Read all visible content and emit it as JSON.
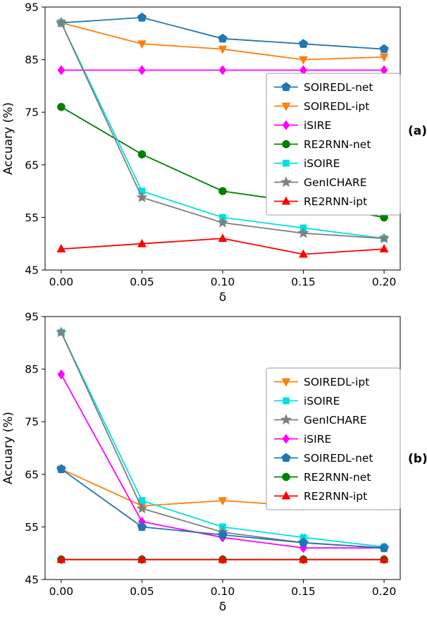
{
  "chart_data": [
    {
      "type": "line",
      "panel_label": "(a)",
      "xlabel": "δ",
      "ylabel": "Accuary (%)",
      "x": [
        0.0,
        0.05,
        0.1,
        0.15,
        0.2
      ],
      "xticklabels": [
        "0.00",
        "0.05",
        "0.10",
        "0.15",
        "0.20"
      ],
      "yticks": [
        45,
        55,
        65,
        75,
        85,
        95
      ],
      "ylim": [
        45,
        95
      ],
      "xlim": [
        -0.01,
        0.21
      ],
      "grid": false,
      "legend_position": "center right",
      "series": [
        {
          "name": "SOIREDL-net",
          "color": "#1f77b4",
          "marker": "pentagon",
          "values": [
            92,
            93,
            89,
            88,
            87
          ]
        },
        {
          "name": "SOIREDL-ipt",
          "color": "#ff7f0e",
          "marker": "triangle-down",
          "values": [
            92,
            88,
            87,
            85,
            85.5
          ]
        },
        {
          "name": "iSIRE",
          "color": "#ff00ff",
          "marker": "diamond",
          "values": [
            83,
            83,
            83,
            83,
            83
          ]
        },
        {
          "name": "RE2RNN-net",
          "color": "#008000",
          "marker": "circle",
          "values": [
            76,
            67,
            60,
            57.8,
            55
          ]
        },
        {
          "name": "iSOIRE",
          "color": "#00e0e0",
          "marker": "square",
          "values": [
            92,
            60,
            55,
            53,
            51
          ]
        },
        {
          "name": "GenICHARE",
          "color": "#7f7f7f",
          "marker": "star",
          "values": [
            92,
            58.8,
            54,
            52,
            51
          ]
        },
        {
          "name": "RE2RNN-ipt",
          "color": "#ff0000",
          "marker": "triangle-up",
          "values": [
            49,
            50,
            51,
            48,
            49
          ]
        }
      ]
    },
    {
      "type": "line",
      "panel_label": "(b)",
      "xlabel": "δ",
      "ylabel": "Accuary (%)",
      "x": [
        0.0,
        0.05,
        0.1,
        0.15,
        0.2
      ],
      "xticklabels": [
        "0.00",
        "0.05",
        "0.10",
        "0.15",
        "0.20"
      ],
      "yticks": [
        45,
        55,
        65,
        75,
        85,
        95
      ],
      "ylim": [
        45,
        95
      ],
      "xlim": [
        -0.01,
        0.21
      ],
      "grid": false,
      "legend_position": "center right",
      "series": [
        {
          "name": "SOIREDL-ipt",
          "color": "#ff7f0e",
          "marker": "triangle-down",
          "values": [
            66,
            59,
            60,
            59,
            59
          ]
        },
        {
          "name": "iSOIRE",
          "color": "#00e0e0",
          "marker": "square",
          "values": [
            92,
            60,
            55,
            53,
            51.2
          ]
        },
        {
          "name": "GenICHARE",
          "color": "#7f7f7f",
          "marker": "star",
          "values": [
            92,
            58.5,
            54,
            52,
            51
          ]
        },
        {
          "name": "iSIRE",
          "color": "#ff00ff",
          "marker": "diamond",
          "values": [
            84,
            56,
            53,
            51,
            51
          ]
        },
        {
          "name": "SOIREDL-net",
          "color": "#1f77b4",
          "marker": "pentagon",
          "values": [
            66,
            55,
            53.5,
            52,
            51
          ]
        },
        {
          "name": "RE2RNN-net",
          "color": "#008000",
          "marker": "circle",
          "values": [
            48.8,
            48.8,
            48.8,
            48.8,
            48.8
          ]
        },
        {
          "name": "RE2RNN-ipt",
          "color": "#ff0000",
          "marker": "triangle-up",
          "values": [
            48.8,
            48.8,
            48.8,
            48.8,
            48.8
          ]
        }
      ]
    }
  ]
}
